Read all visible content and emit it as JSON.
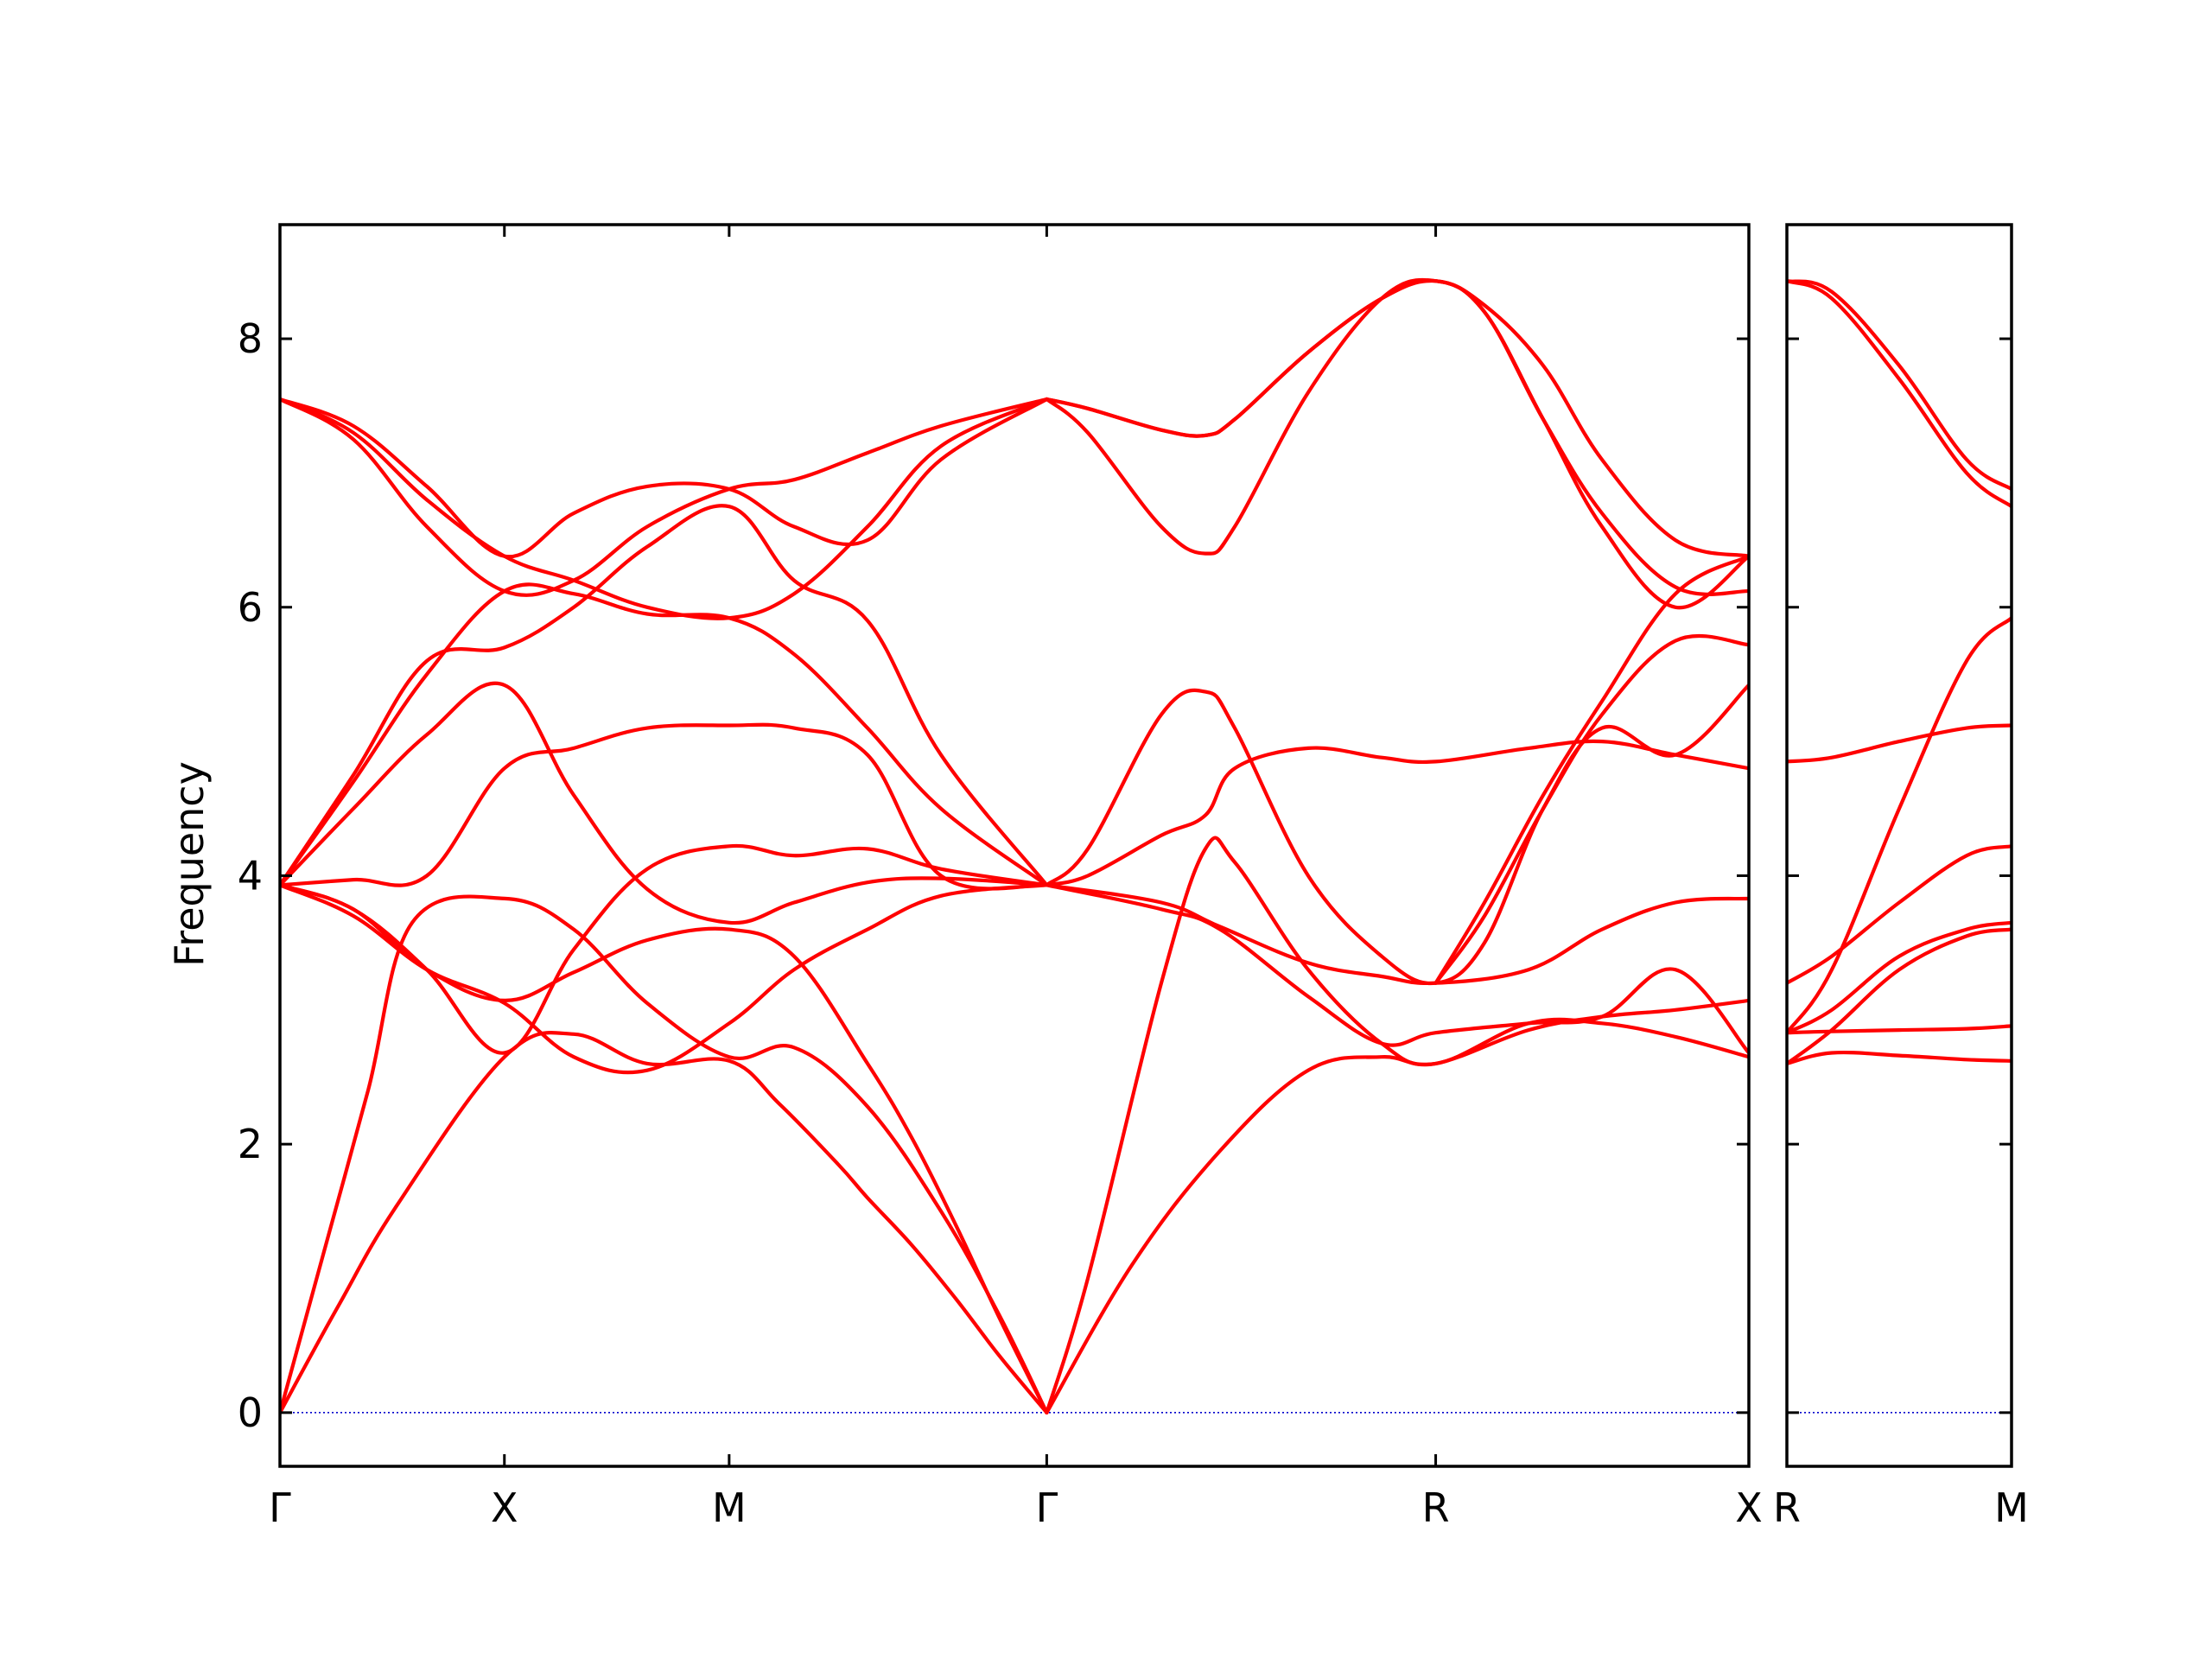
{
  "chart_data": {
    "type": "line",
    "ylabel": "Frequency",
    "ylim": [
      -0.4,
      8.85
    ],
    "yticks": [
      0,
      2,
      4,
      6,
      8
    ],
    "line_color": "#ff0000",
    "zero_line_color": "#0000cc",
    "panels": [
      {
        "xlim": [
          0,
          1
        ],
        "labels": [
          {
            "pos": 0.0,
            "text": "Γ"
          },
          {
            "pos": 0.1528,
            "text": "X"
          },
          {
            "pos": 0.3058,
            "text": "M"
          },
          {
            "pos": 0.522,
            "text": "Γ"
          },
          {
            "pos": 0.7868,
            "text": "R"
          },
          {
            "pos": 1.0,
            "text": "X"
          }
        ],
        "series": [
          {
            "x": [
              0,
              0.04,
              0.08,
              0.1528,
              0.2,
              0.25,
              0.3058,
              0.34,
              0.38,
              0.4,
              0.43,
              0.46,
              0.49,
              0.522
            ],
            "y": [
              0,
              0.8,
              1.55,
              2.65,
              2.82,
              2.6,
              2.62,
              2.3,
              1.85,
              1.6,
              1.25,
              0.85,
              0.42,
              0
            ]
          },
          {
            "x": [
              0,
              0.03,
              0.06,
              0.09,
              0.1528,
              0.2,
              0.25,
              0.3058,
              0.35,
              0.4,
              0.45,
              0.49,
              0.522
            ],
            "y": [
              0,
              1.2,
              2.4,
              3.65,
              3.83,
              3.6,
              3.05,
              2.65,
              2.72,
              2.28,
              1.5,
              0.72,
              0
            ]
          },
          {
            "x": [
              0,
              0.05,
              0.1,
              0.1528,
              0.2,
              0.25,
              0.3058,
              0.35,
              0.4,
              0.43,
              0.46,
              0.49,
              0.522
            ],
            "y": [
              3.93,
              3.75,
              3.3,
              3.07,
              3.28,
              3.52,
              3.6,
              3.4,
              2.6,
              2.05,
              1.4,
              0.7,
              0
            ]
          },
          {
            "x": [
              0,
              0.05,
              0.1,
              0.1528,
              0.2,
              0.25,
              0.3058,
              0.35,
              0.4,
              0.45,
              0.522
            ],
            "y": [
              3.93,
              3.7,
              3.3,
              3.05,
              2.65,
              2.55,
              2.9,
              3.3,
              3.6,
              3.85,
              3.93
            ]
          },
          {
            "x": [
              0,
              0.05,
              0.1,
              0.1528,
              0.2,
              0.25,
              0.3058,
              0.35,
              0.4,
              0.45,
              0.522
            ],
            "y": [
              3.93,
              3.75,
              3.3,
              2.68,
              3.45,
              4.05,
              4.22,
              4.15,
              4.2,
              4.05,
              3.93
            ]
          },
          {
            "x": [
              0,
              0.05,
              0.1,
              0.1528,
              0.2,
              0.25,
              0.3058,
              0.35,
              0.4,
              0.45,
              0.522
            ],
            "y": [
              3.93,
              3.97,
              4.0,
              4.8,
              4.95,
              5.1,
              5.12,
              5.1,
              4.9,
              4.0,
              3.93
            ]
          },
          {
            "x": [
              0,
              0.05,
              0.1,
              0.1528,
              0.2,
              0.25,
              0.3058,
              0.35,
              0.4,
              0.45,
              0.522
            ],
            "y": [
              3.93,
              4.5,
              5.05,
              5.42,
              4.6,
              3.9,
              3.65,
              3.8,
              3.95,
              3.98,
              3.93
            ]
          },
          {
            "x": [
              0,
              0.05,
              0.1,
              0.1528,
              0.2,
              0.25,
              0.3058,
              0.35,
              0.4,
              0.45,
              0.522
            ],
            "y": [
              3.93,
              4.7,
              5.5,
              6.12,
              6.1,
              5.95,
              5.92,
              5.65,
              5.1,
              4.5,
              3.93
            ]
          },
          {
            "x": [
              0,
              0.05,
              0.1,
              0.1528,
              0.2,
              0.25,
              0.3058,
              0.35,
              0.4,
              0.45,
              0.522
            ],
            "y": [
              3.93,
              4.75,
              5.6,
              5.7,
              6.0,
              6.45,
              6.75,
              6.2,
              5.9,
              4.9,
              3.93
            ]
          },
          {
            "x": [
              0,
              0.05,
              0.1,
              0.1528,
              0.2,
              0.25,
              0.3058,
              0.35,
              0.4,
              0.45,
              0.522
            ],
            "y": [
              7.55,
              7.35,
              6.9,
              6.38,
              6.7,
              6.9,
              6.88,
              6.6,
              6.5,
              7.1,
              7.55
            ]
          },
          {
            "x": [
              0,
              0.05,
              0.1,
              0.1528,
              0.2,
              0.25,
              0.3058,
              0.35,
              0.4,
              0.45,
              0.522
            ],
            "y": [
              7.55,
              7.25,
              6.6,
              6.12,
              6.2,
              6.6,
              6.88,
              6.95,
              7.15,
              7.35,
              7.55
            ]
          },
          {
            "x": [
              0,
              0.05,
              0.1,
              0.1528,
              0.2,
              0.25,
              0.3058,
              0.35,
              0.4,
              0.45,
              0.522
            ],
            "y": [
              7.55,
              7.3,
              6.8,
              6.38,
              6.2,
              6.0,
              5.92,
              6.1,
              6.6,
              7.2,
              7.55
            ]
          },
          {
            "x": [
              0.522,
              0.55,
              0.6,
              0.63,
              0.65,
              0.7,
              0.75,
              0.7868,
              0.85,
              0.9,
              0.95,
              1.0
            ],
            "y": [
              0,
              1.0,
              3.2,
              4.2,
              4.1,
              3.3,
              2.75,
              2.6,
              2.9,
              2.9,
              2.8,
              2.65
            ]
          },
          {
            "x": [
              0.522,
              0.58,
              0.64,
              0.7,
              0.75,
              0.7868,
              0.85,
              0.9,
              0.95,
              1.0
            ],
            "y": [
              0,
              1.1,
              1.95,
              2.55,
              2.65,
              2.6,
              2.85,
              2.95,
              3.0,
              3.07
            ]
          },
          {
            "x": [
              0.522,
              0.6,
              0.64,
              0.7,
              0.75,
              0.7868,
              0.85,
              0.9,
              0.95,
              1.0
            ],
            "y": [
              3.93,
              3.75,
              3.6,
              3.1,
              2.75,
              2.83,
              2.9,
              2.95,
              3.3,
              2.68
            ]
          },
          {
            "x": [
              0.522,
              0.6,
              0.64,
              0.7,
              0.75,
              0.7868,
              0.85,
              0.9,
              0.95,
              1.0
            ],
            "y": [
              3.93,
              3.8,
              3.62,
              3.35,
              3.25,
              3.2,
              3.3,
              3.6,
              3.8,
              3.83
            ]
          },
          {
            "x": [
              0.522,
              0.55,
              0.6,
              0.63,
              0.65,
              0.7,
              0.75,
              0.7868,
              0.85,
              0.9,
              0.95,
              1.0
            ],
            "y": [
              3.93,
              4.0,
              4.3,
              4.45,
              4.8,
              4.95,
              4.88,
              4.85,
              4.95,
              5.0,
              4.9,
              4.8
            ]
          },
          {
            "x": [
              0.522,
              0.55,
              0.6,
              0.63,
              0.65,
              0.7,
              0.75,
              0.7868,
              0.82,
              0.86,
              0.9,
              0.95,
              1.0
            ],
            "y": [
              3.93,
              4.2,
              5.2,
              5.37,
              5.1,
              4.0,
              3.4,
              3.2,
              3.5,
              4.5,
              5.1,
              4.9,
              5.42
            ]
          },
          {
            "x": [
              0.522,
              0.55,
              0.6,
              0.63,
              0.65,
              0.7,
              0.75,
              0.7868,
              0.82,
              0.86,
              0.9,
              0.95,
              1.0
            ],
            "y": [
              7.55,
              7.3,
              6.6,
              6.4,
              6.6,
              7.6,
              8.3,
              8.43,
              8.2,
              7.4,
              6.6,
              6.0,
              6.38
            ]
          },
          {
            "x": [
              0.522,
              0.55,
              0.6,
              0.63,
              0.65,
              0.7,
              0.75,
              0.7868,
              0.82,
              0.86,
              0.9,
              0.95,
              1.0
            ],
            "y": [
              7.55,
              7.48,
              7.32,
              7.28,
              7.4,
              7.9,
              8.3,
              8.43,
              8.2,
              7.4,
              6.7,
              6.15,
              6.12
            ]
          },
          {
            "x": [
              0.522,
              0.55,
              0.6,
              0.63,
              0.65,
              0.7,
              0.75,
              0.7868,
              0.82,
              0.86,
              0.9,
              0.95,
              1.0
            ],
            "y": [
              7.55,
              7.48,
              7.32,
              7.28,
              7.4,
              7.9,
              8.3,
              8.43,
              8.25,
              7.8,
              7.1,
              6.5,
              6.38
            ]
          },
          {
            "x": [
              0.7868,
              0.82,
              0.86,
              0.9,
              0.95,
              1.0
            ],
            "y": [
              3.2,
              3.7,
              4.5,
              5.2,
              5.75,
              5.72
            ]
          },
          {
            "x": [
              0.7868,
              0.82,
              0.86,
              0.9,
              0.95,
              1.0
            ],
            "y": [
              3.2,
              3.8,
              4.6,
              5.3,
              6.1,
              6.38
            ]
          }
        ]
      },
      {
        "xlim": [
          0,
          1
        ],
        "labels": [
          {
            "pos": 0.0,
            "text": "R"
          },
          {
            "pos": 1.0,
            "text": "M"
          }
        ],
        "series": [
          {
            "x": [
              0,
              0.2,
              0.5,
              0.8,
              1.0
            ],
            "y": [
              2.6,
              2.68,
              2.66,
              2.63,
              2.62
            ]
          },
          {
            "x": [
              0,
              0.2,
              0.5,
              0.8,
              1.0
            ],
            "y": [
              2.83,
              2.84,
              2.85,
              2.86,
              2.88
            ]
          },
          {
            "x": [
              0,
              0.2,
              0.5,
              0.8,
              1.0
            ],
            "y": [
              2.6,
              2.85,
              3.3,
              3.55,
              3.6
            ]
          },
          {
            "x": [
              0,
              0.2,
              0.5,
              0.8,
              1.0
            ],
            "y": [
              2.83,
              3.0,
              3.4,
              3.6,
              3.65
            ]
          },
          {
            "x": [
              0,
              0.2,
              0.5,
              0.8,
              1.0
            ],
            "y": [
              3.2,
              3.4,
              3.8,
              4.15,
              4.22
            ]
          },
          {
            "x": [
              0,
              0.2,
              0.5,
              0.8,
              1.0
            ],
            "y": [
              2.83,
              3.3,
              4.5,
              5.6,
              5.92
            ]
          },
          {
            "x": [
              0,
              0.2,
              0.5,
              0.8,
              1.0
            ],
            "y": [
              4.85,
              4.88,
              5.0,
              5.1,
              5.12
            ]
          },
          {
            "x": [
              0,
              0.2,
              0.5,
              0.8,
              1.0
            ],
            "y": [
              8.43,
              8.3,
              7.7,
              7.0,
              6.75
            ]
          },
          {
            "x": [
              0,
              0.2,
              0.5,
              0.8,
              1.0
            ],
            "y": [
              8.43,
              8.35,
              7.8,
              7.1,
              6.88
            ]
          }
        ]
      }
    ]
  }
}
